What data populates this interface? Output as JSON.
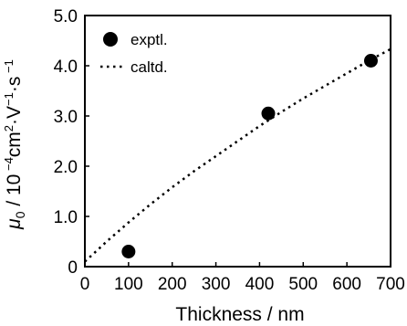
{
  "chart_data": {
    "type": "scatter",
    "xlabel": "Thickness / nm",
    "ylabel": "μ0 / 10⁻⁴cm²·V⁻¹·s⁻¹",
    "ylabel_parts": {
      "mu": "μ",
      "sub": "0",
      "mid": " / 10",
      "exp1": " −4",
      "cm": "cm",
      "exp2": "2",
      "v": "·V",
      "exp3": "−1",
      "s": "·s",
      "exp4": " −1"
    },
    "xlim": [
      0,
      700
    ],
    "ylim": [
      0,
      5
    ],
    "xticks": [
      "0",
      "100",
      "200",
      "300",
      "400",
      "500",
      "600",
      "700"
    ],
    "yticks": [
      "0",
      "1.0",
      "2.0",
      "3.0",
      "4.0",
      "5.0"
    ],
    "series": [
      {
        "name": "exptl.",
        "style": "markers",
        "color": "#000000",
        "x": [
          100,
          420,
          655
        ],
        "y": [
          0.3,
          3.05,
          4.1
        ]
      },
      {
        "name": "caltd.",
        "style": "dotted-line",
        "color": "#000000",
        "x": [
          0,
          50,
          100,
          150,
          200,
          250,
          300,
          350,
          400,
          450,
          500,
          550,
          600,
          650,
          700
        ],
        "y": [
          0.1,
          0.5,
          0.88,
          1.24,
          1.58,
          1.9,
          2.2,
          2.5,
          2.8,
          3.08,
          3.35,
          3.6,
          3.85,
          4.1,
          4.33
        ]
      }
    ],
    "legend_position": "top-left"
  }
}
